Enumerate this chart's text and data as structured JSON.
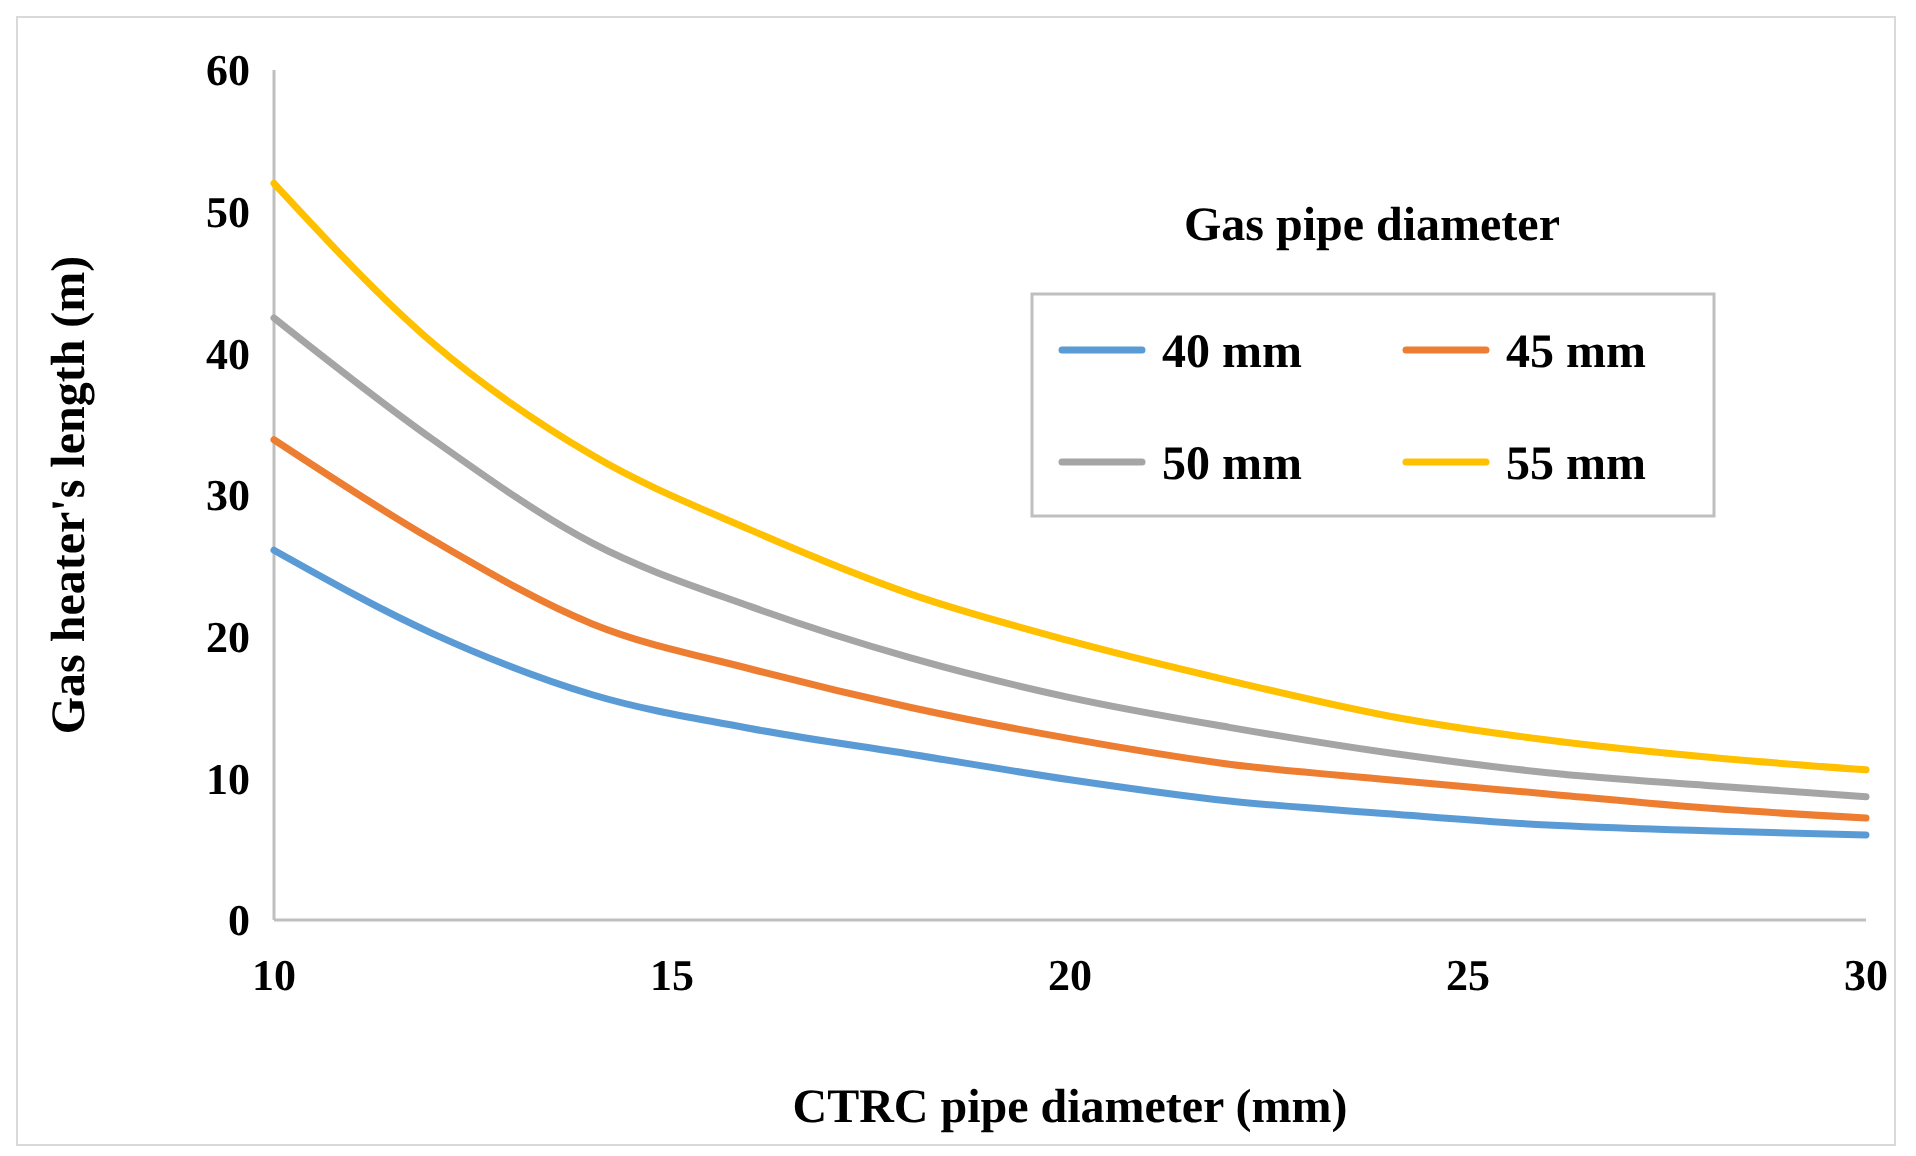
{
  "chart_data": {
    "type": "line",
    "xlabel": "CTRC pipe diameter (mm)",
    "ylabel": "Gas heater's length (m)",
    "legend_title": "Gas pipe diameter",
    "x": [
      10,
      12,
      14,
      16,
      18,
      20,
      22,
      24,
      26,
      28,
      30
    ],
    "xlim": [
      10,
      30
    ],
    "xticks": [
      10,
      15,
      20,
      25,
      30
    ],
    "ylim": [
      0,
      60
    ],
    "yticks": [
      0,
      10,
      20,
      30,
      40,
      50,
      60
    ],
    "grid": false,
    "legend": "top right",
    "marker": "none",
    "line_style": "solid",
    "series": [
      {
        "name": "40 mm",
        "color": "#5b9bd5",
        "values": [
          26.1,
          20.2,
          15.9,
          13.5,
          11.7,
          9.9,
          8.4,
          7.5,
          6.7,
          6.3,
          6.0
        ]
      },
      {
        "name": "45 mm",
        "color": "#ed7d31",
        "values": [
          33.9,
          26.8,
          20.9,
          17.7,
          15.0,
          12.8,
          11.0,
          9.9,
          8.9,
          7.9,
          7.2
        ]
      },
      {
        "name": "50 mm",
        "color": "#a5a5a5",
        "values": [
          42.5,
          33.9,
          26.6,
          22.1,
          18.5,
          15.7,
          13.6,
          11.8,
          10.4,
          9.5,
          8.7
        ]
      },
      {
        "name": "55 mm",
        "color": "#ffc000",
        "values": [
          52.0,
          40.7,
          32.8,
          27.5,
          23.0,
          19.7,
          16.9,
          14.4,
          12.7,
          11.5,
          10.6
        ]
      }
    ]
  }
}
